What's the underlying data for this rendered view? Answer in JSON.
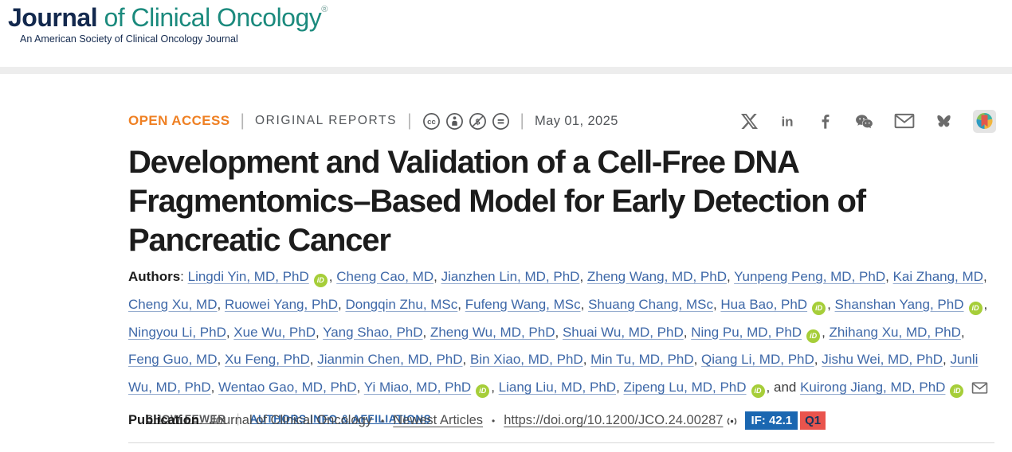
{
  "brand": {
    "name_bold": "Journal",
    "name_rest": " of Clinical Oncology",
    "reg_mark": "®",
    "tagline": "An American Society of Clinical Oncology Journal"
  },
  "meta": {
    "open_access": "OPEN ACCESS",
    "article_type": "ORIGINAL REPORTS",
    "license_icons": [
      "cc-icon",
      "cc-by-icon",
      "cc-nc-icon",
      "cc-nd-icon"
    ],
    "date": "May 01, 2025",
    "separator": "|"
  },
  "social": [
    {
      "icon": "x-icon"
    },
    {
      "icon": "linkedin-icon"
    },
    {
      "icon": "facebook-icon"
    },
    {
      "icon": "wechat-icon"
    },
    {
      "icon": "email-icon"
    },
    {
      "icon": "bluesky-icon"
    },
    {
      "icon": "bookmark-app-icon"
    }
  ],
  "title": {
    "lines": [
      "Development and Validation of a Cell-Free DNA",
      "Fragmentomics–Based Model for Early Detection of",
      "Pancreatic Cancer"
    ]
  },
  "authors": {
    "label": "Authors",
    "colon": ": ",
    "list": [
      {
        "name": "Lingdi Yin, MD, PhD",
        "orcid": true
      },
      {
        "name": "Cheng Cao, MD"
      },
      {
        "name": "Jianzhen Lin, MD, PhD"
      },
      {
        "name": "Zheng Wang, MD, PhD"
      },
      {
        "name": "Yunpeng Peng, MD, PhD"
      },
      {
        "name": "Kai Zhang, MD"
      },
      {
        "name": "Cheng Xu, MD"
      },
      {
        "name": "Ruowei Yang, PhD"
      },
      {
        "name": "Dongqin Zhu, MSc"
      },
      {
        "name": "Fufeng Wang, MSc"
      },
      {
        "name": "Shuang Chang, MSc"
      },
      {
        "name": "Hua Bao, PhD",
        "orcid": true
      },
      {
        "name": "Shanshan Yang, PhD",
        "orcid": true
      },
      {
        "name": "Ningyou Li, PhD"
      },
      {
        "name": "Xue Wu, PhD"
      },
      {
        "name": "Yang Shao, PhD"
      },
      {
        "name": "Zheng Wu, MD, PhD"
      },
      {
        "name": "Shuai Wu, MD, PhD"
      },
      {
        "name": "Ning Pu, MD, PhD",
        "orcid": true
      },
      {
        "name": "Zhihang Xu, MD, PhD"
      },
      {
        "name": "Feng Guo, MD"
      },
      {
        "name": "Xu Feng, PhD"
      },
      {
        "name": "Jianmin Chen, MD, PhD"
      },
      {
        "name": "Bin Xiao, MD, PhD"
      },
      {
        "name": "Min Tu, MD, PhD"
      },
      {
        "name": "Qiang Li, MD, PhD"
      },
      {
        "name": "Jishu Wei, MD, PhD"
      },
      {
        "name": "Junli Wu, MD, PhD"
      },
      {
        "name": "Wentao Gao, MD, PhD"
      },
      {
        "name": "Yi Miao, MD, PhD",
        "orcid": true
      },
      {
        "name": "Liang Liu, MD, PhD"
      },
      {
        "name": "Zipeng Lu, MD, PhD",
        "orcid": true
      },
      {
        "name": "Kuirong Jiang, MD, PhD",
        "orcid": true,
        "email": true,
        "prefix": "and "
      }
    ],
    "separator": ", ",
    "show_fewer": "SHOW FEWER",
    "info_link": "AUTHORS INFO & AFFILIATIONS"
  },
  "publication": {
    "label": "Publication",
    "colon": ":",
    "journal": "Journal of Clinical Oncology",
    "bullet": "•",
    "newest_articles": "Newest Articles",
    "doi": "https://doi.org/10.1200/JCO.24.00287",
    "impact_factor": "IF: 42.1",
    "quartile": "Q1"
  },
  "colors": {
    "brand_navy": "#13294e",
    "brand_teal": "#1b8a7d",
    "open_access_orange": "#ef8023",
    "author_link_blue": "#3e68a8",
    "orcid_green": "#a6ce39",
    "info_link_blue": "#2b62a7",
    "if_badge_blue": "#1b67b1",
    "quartile_red": "#e9544d"
  }
}
